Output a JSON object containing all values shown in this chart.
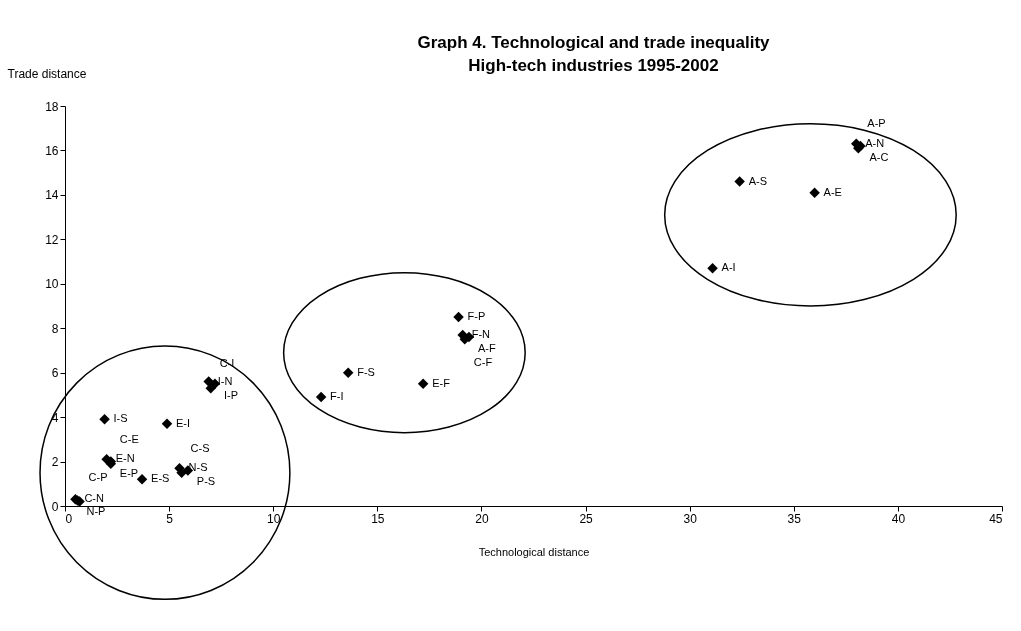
{
  "chart_data": {
    "type": "scatter",
    "title": "Graph 4. Technological and trade inequality",
    "subtitle": "High-tech industries 1995-2002",
    "xlabel": "Technological distance",
    "ylabel": "Trade distance",
    "x": [
      0.5,
      0.6,
      0.7,
      1.9,
      4.9,
      2.0,
      2.2,
      2.2,
      3.7,
      5.5,
      5.9,
      5.6,
      6.9,
      7.2,
      7.0,
      18.9,
      19.1,
      19.4,
      19.2,
      13.6,
      17.2,
      12.3,
      38.0,
      38.2,
      38.1,
      32.4,
      36.0,
      31.1
    ],
    "values": [
      0.3,
      0.25,
      0.2,
      3.9,
      3.7,
      2.1,
      2.0,
      1.9,
      1.2,
      1.7,
      1.6,
      1.5,
      5.6,
      5.5,
      5.3,
      8.5,
      7.7,
      7.6,
      7.5,
      6.0,
      5.5,
      4.9,
      16.3,
      16.2,
      16.1,
      14.6,
      14.1,
      10.7
    ],
    "value_labels": [
      "C-N",
      "N-P",
      "C-P",
      "I-S",
      "E-I",
      "E-N",
      "E-P",
      "C-E",
      "E-S",
      "N-S",
      "P-S",
      "C-S",
      "I-N",
      "I-P",
      "C-I",
      "F-P",
      "F-N",
      "A-F",
      "C-F",
      "F-S",
      "E-F",
      "F-I",
      "A-N",
      "A-C",
      "A-P",
      "A-S",
      "A-E",
      "A-I"
    ],
    "color": "#000000",
    "marker": "diamond",
    "grid": false,
    "xlim": [
      0,
      45
    ],
    "xticks": [
      0,
      5,
      10,
      15,
      20,
      25,
      30,
      35,
      40,
      45
    ],
    "ylim": [
      0,
      18
    ],
    "yticks": [
      0,
      2,
      4,
      6,
      8,
      10,
      12,
      14,
      16,
      18
    ]
  }
}
